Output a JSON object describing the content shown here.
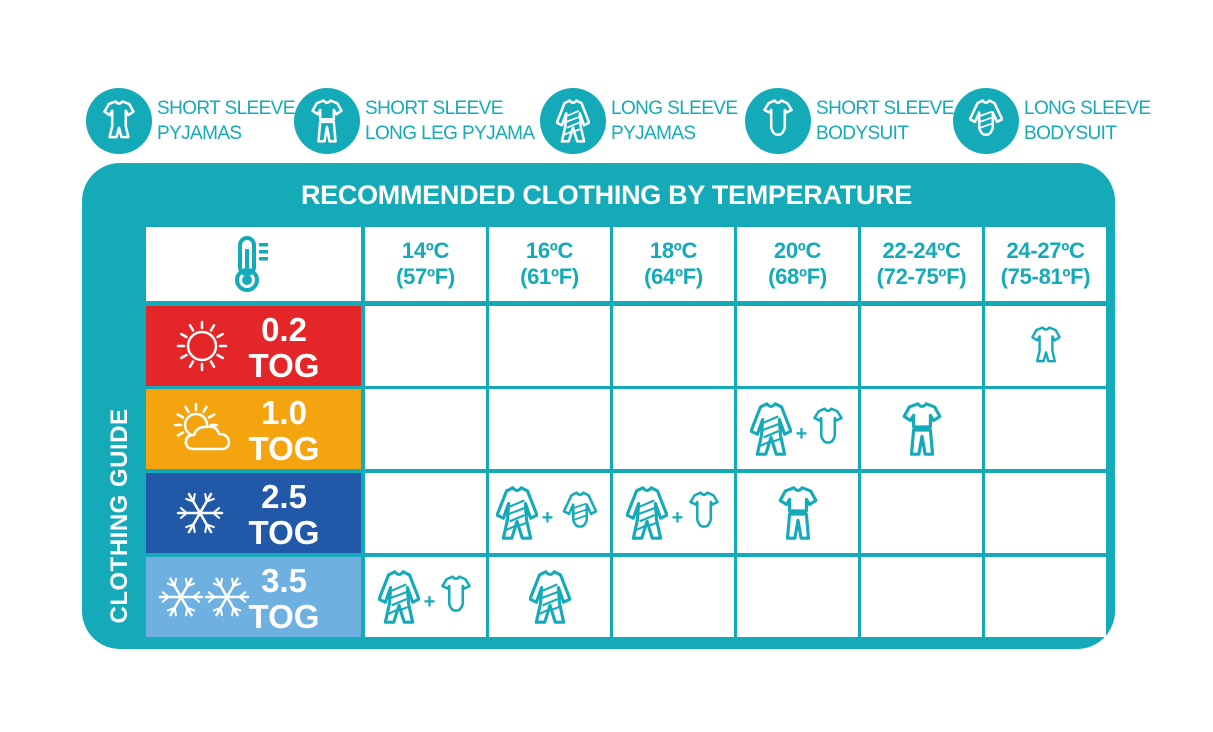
{
  "legend": [
    {
      "icon": "short-sleeve-pyjamas-icon",
      "line1": "SHORT SLEEVE",
      "line2": "PYJAMAS"
    },
    {
      "icon": "short-sleeve-long-leg-pyjama-icon",
      "line1": "SHORT SLEEVE",
      "line2": "LONG LEG PYJAMA"
    },
    {
      "icon": "long-sleeve-pyjamas-icon",
      "line1": "LONG SLEEVE",
      "line2": "PYJAMAS"
    },
    {
      "icon": "short-sleeve-bodysuit-icon",
      "line1": "SHORT SLEEVE",
      "line2": "BODYSUIT"
    },
    {
      "icon": "long-sleeve-bodysuit-icon",
      "line1": "LONG SLEEVE",
      "line2": "BODYSUIT"
    }
  ],
  "title": "RECOMMENDED CLOTHING BY TEMPERATURE",
  "side_label": "CLOTHING GUIDE",
  "header_icon": "thermometer-icon",
  "columns": [
    {
      "c": "14ºC",
      "f": "(57ºF)"
    },
    {
      "c": "16ºC",
      "f": "(61ºF)"
    },
    {
      "c": "18ºC",
      "f": "(64ºF)"
    },
    {
      "c": "20ºC",
      "f": "(68ºF)"
    },
    {
      "c": "22-24ºC",
      "f": "(72-75ºF)"
    },
    {
      "c": "24-27ºC",
      "f": "(75-81ºF)"
    }
  ],
  "rows": [
    {
      "tog": "0.2",
      "unit": "TOG",
      "color": "#e52629",
      "weather_icon": "sun-icon"
    },
    {
      "tog": "1.0",
      "unit": "TOG",
      "color": "#f3a40f",
      "weather_icon": "sun-cloud-icon"
    },
    {
      "tog": "2.5",
      "unit": "TOG",
      "color": "#2258a8",
      "weather_icon": "snowflake-icon"
    },
    {
      "tog": "3.5",
      "unit": "TOG",
      "color": "#6eb1e1",
      "weather_icon": "double-snowflake-icon"
    }
  ],
  "grid": [
    [
      [],
      [],
      [],
      [],
      [],
      [
        "short-sleeve-pyjamas"
      ]
    ],
    [
      [],
      [],
      [],
      [
        "long-sleeve-pyjamas",
        "short-sleeve-bodysuit"
      ],
      [
        "short-sleeve-long-leg-pyjama"
      ],
      []
    ],
    [
      [],
      [
        "long-sleeve-pyjamas",
        "long-sleeve-bodysuit"
      ],
      [
        "long-sleeve-pyjamas",
        "short-sleeve-bodysuit"
      ],
      [
        "short-sleeve-long-leg-pyjama"
      ],
      [],
      []
    ],
    [
      [
        "long-sleeve-pyjamas",
        "short-sleeve-bodysuit"
      ],
      [
        "long-sleeve-pyjamas"
      ],
      [],
      [],
      [],
      []
    ]
  ],
  "plus": "+",
  "colors": {
    "teal": "#15aab8",
    "white": "#ffffff"
  }
}
